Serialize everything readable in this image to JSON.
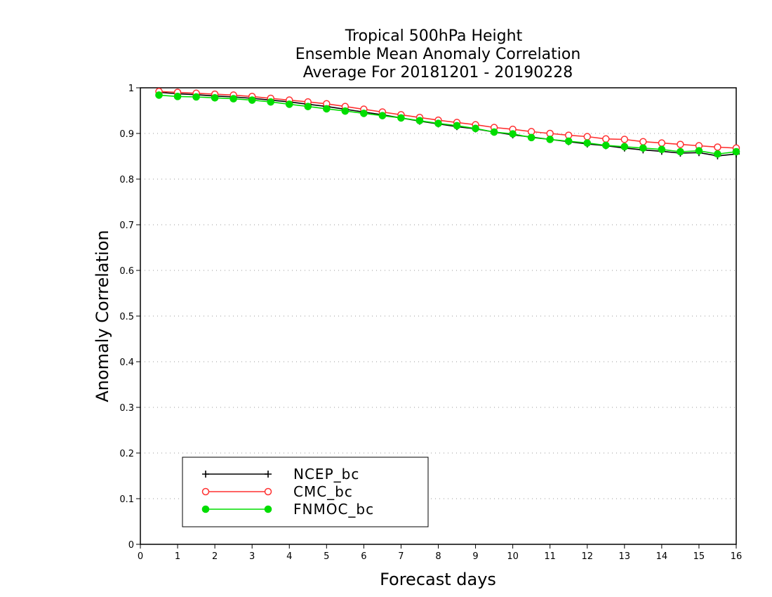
{
  "chart_data": {
    "type": "line",
    "title_lines": [
      "Tropical 500hPa Height",
      "Ensemble Mean Anomaly Correlation",
      "Average For 20181201 - 20190228"
    ],
    "xlabel": "Forecast days",
    "ylabel": "Anomaly Correlation",
    "xlim": [
      0,
      16
    ],
    "ylim": [
      0,
      1
    ],
    "x_ticks": [
      "0",
      "1",
      "2",
      "3",
      "4",
      "5",
      "6",
      "7",
      "8",
      "9",
      "10",
      "11",
      "12",
      "13",
      "14",
      "15",
      "16"
    ],
    "y_ticks": [
      "0",
      "0.1",
      "0.2",
      "0.3",
      "0.4",
      "0.5",
      "0.6",
      "0.7",
      "0.8",
      "0.9",
      "1"
    ],
    "grid": "horizontal dotted",
    "legend_position": "bottom-left",
    "x": [
      0.5,
      1,
      1.5,
      2,
      2.5,
      3,
      3.5,
      4,
      4.5,
      5,
      5.5,
      6,
      6.5,
      7,
      7.5,
      8,
      8.5,
      9,
      9.5,
      10,
      10.5,
      11,
      11.5,
      12,
      12.5,
      13,
      13.5,
      14,
      14.5,
      15,
      15.5,
      16
    ],
    "series": [
      {
        "name": "NCEP_bc",
        "color": "#000000",
        "marker": "plus",
        "values": [
          0.99,
          0.987,
          0.985,
          0.982,
          0.98,
          0.977,
          0.973,
          0.969,
          0.964,
          0.959,
          0.953,
          0.947,
          0.941,
          0.934,
          0.927,
          0.921,
          0.915,
          0.91,
          0.903,
          0.897,
          0.892,
          0.887,
          0.882,
          0.877,
          0.873,
          0.868,
          0.864,
          0.861,
          0.857,
          0.858,
          0.851,
          0.855
        ]
      },
      {
        "name": "CMC_bc",
        "color": "#ff3030",
        "marker": "open-circle",
        "values": [
          0.992,
          0.99,
          0.988,
          0.986,
          0.984,
          0.981,
          0.977,
          0.973,
          0.969,
          0.965,
          0.959,
          0.953,
          0.947,
          0.941,
          0.935,
          0.929,
          0.924,
          0.919,
          0.913,
          0.909,
          0.904,
          0.9,
          0.896,
          0.893,
          0.888,
          0.887,
          0.882,
          0.879,
          0.876,
          0.873,
          0.87,
          0.868
        ]
      },
      {
        "name": "FNMOC_bc",
        "color": "#00dd00",
        "marker": "filled-circle",
        "values": [
          0.984,
          0.981,
          0.98,
          0.978,
          0.976,
          0.973,
          0.969,
          0.964,
          0.959,
          0.954,
          0.949,
          0.944,
          0.939,
          0.934,
          0.928,
          0.922,
          0.917,
          0.911,
          0.903,
          0.899,
          0.891,
          0.887,
          0.883,
          0.879,
          0.874,
          0.871,
          0.868,
          0.865,
          0.86,
          0.862,
          0.855,
          0.86
        ]
      }
    ]
  }
}
